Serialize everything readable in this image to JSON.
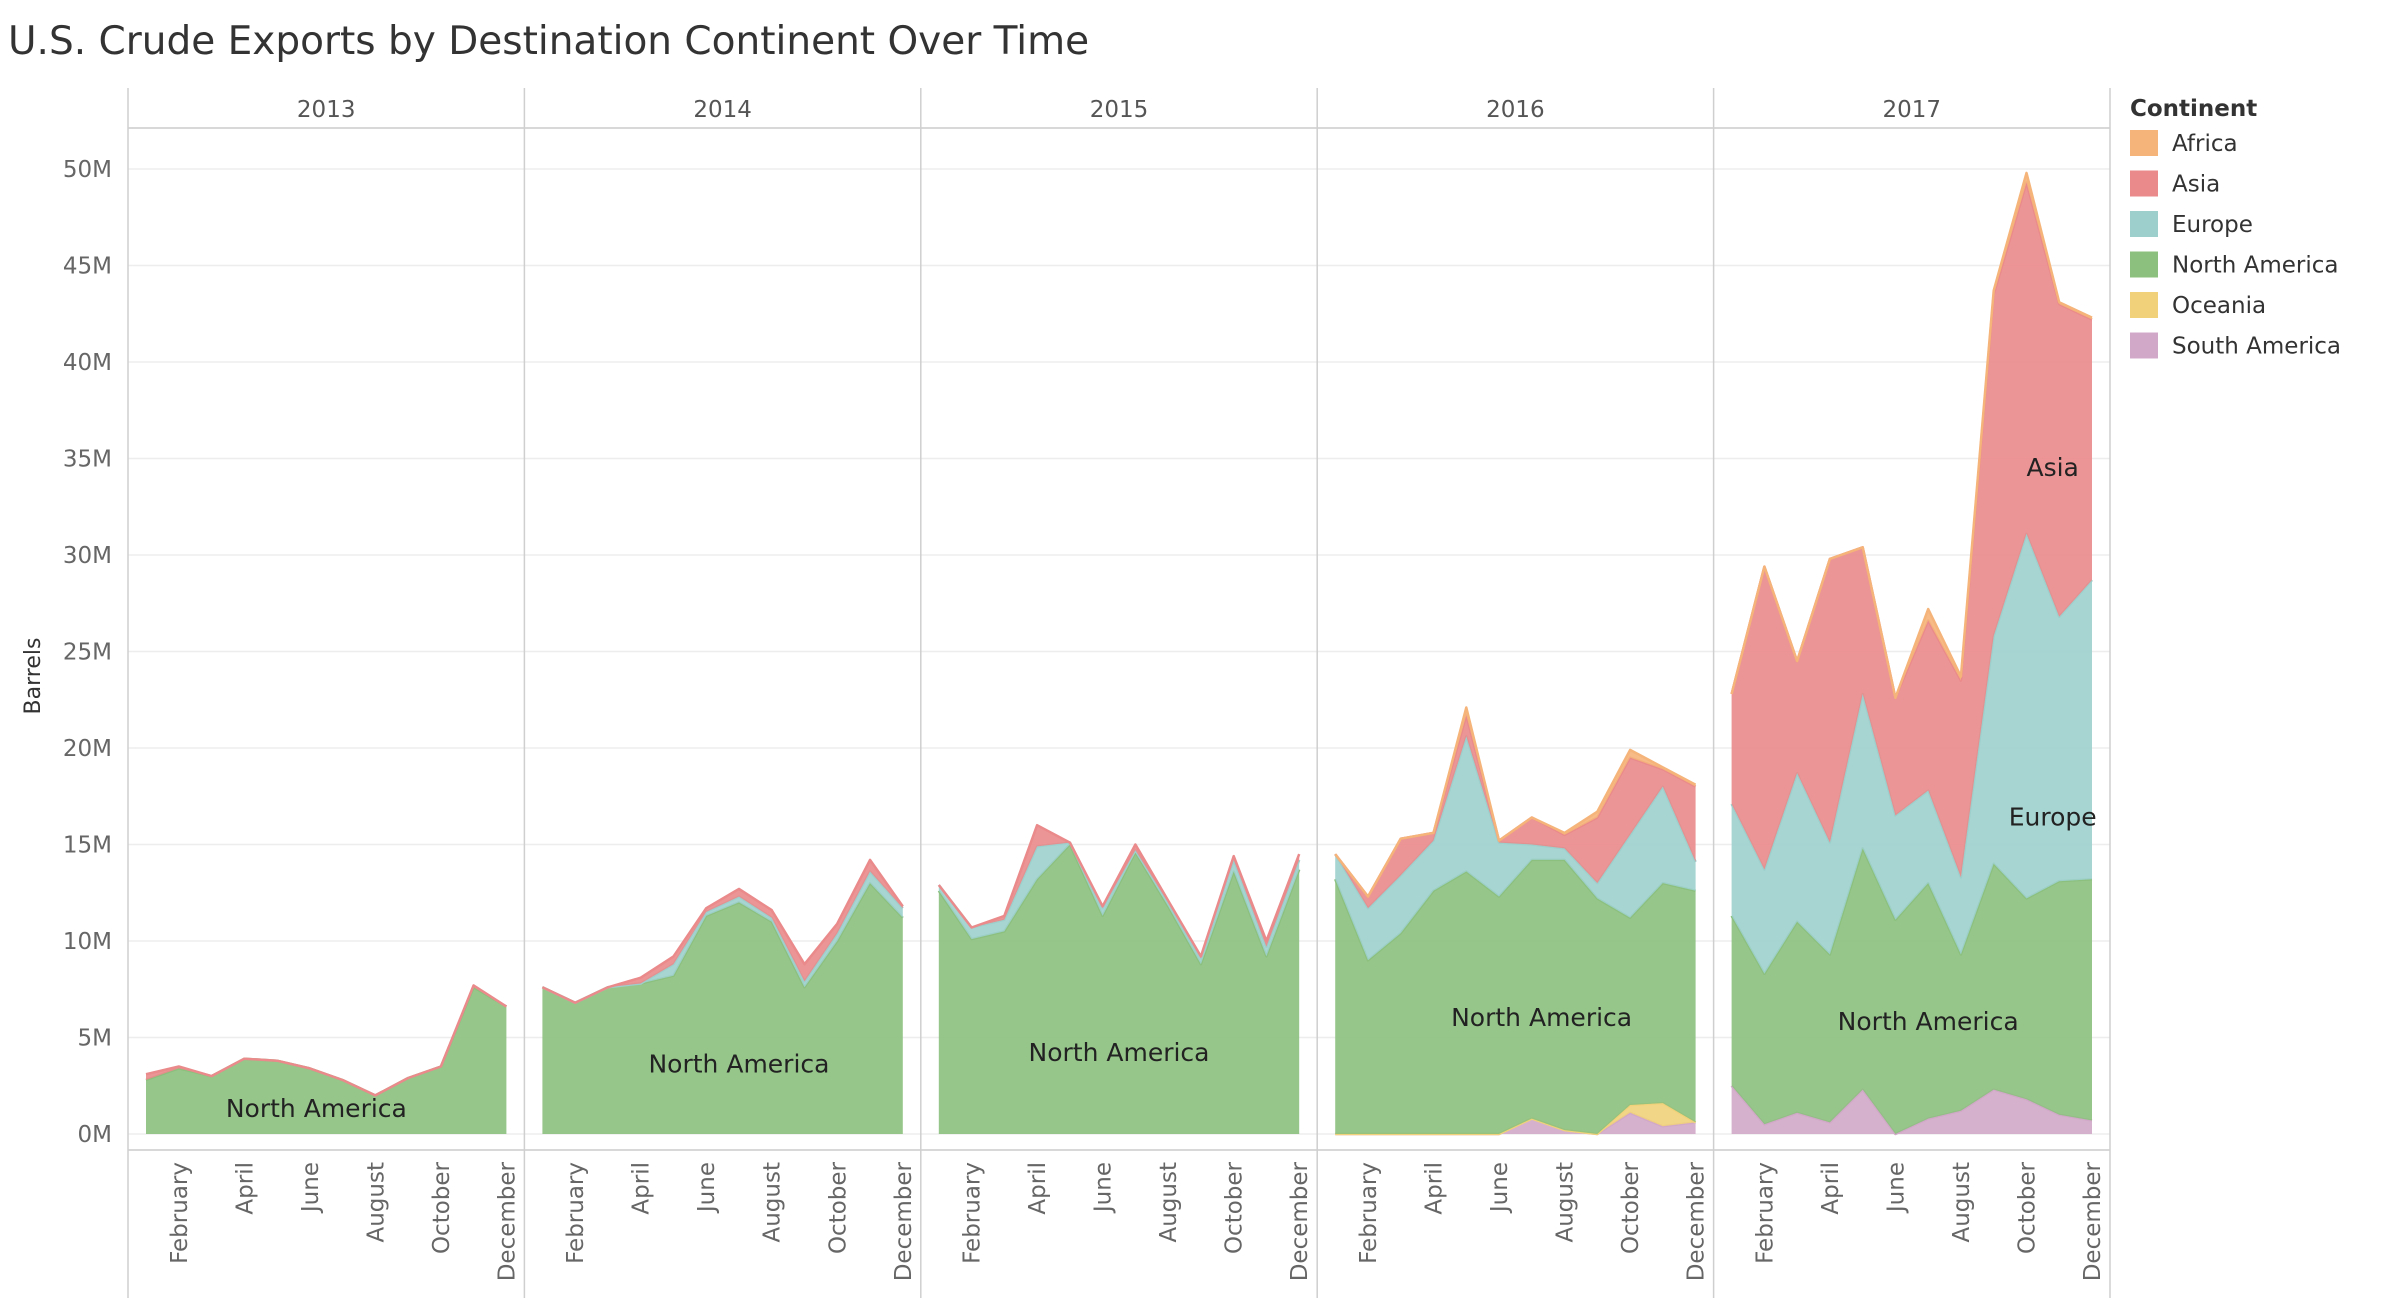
{
  "chart_data": {
    "type": "area",
    "title": "U.S. Crude Exports by Destination Continent Over Time",
    "ylabel": "Barrels",
    "xlabel": "",
    "ylim": [
      0,
      50000000
    ],
    "y_ticks": [
      "0M",
      "5M",
      "10M",
      "15M",
      "20M",
      "25M",
      "30M",
      "35M",
      "40M",
      "45M",
      "50M"
    ],
    "y_tick_values": [
      0,
      5,
      10,
      15,
      20,
      25,
      30,
      35,
      40,
      45,
      50
    ],
    "value_unit": "M barrels",
    "stacked": true,
    "grid": true,
    "legend": {
      "title": "Continent",
      "position": "right"
    },
    "month_tick_labels": [
      "February",
      "April",
      "June",
      "August",
      "October",
      "December"
    ],
    "month_tick_indices": [
      1,
      3,
      5,
      7,
      9,
      11
    ],
    "panels": [
      {
        "year": "2013",
        "series": [
          {
            "name": "South America",
            "color": "#d1a8c8",
            "values": [
              0,
              0,
              0,
              0,
              0,
              0,
              0,
              0,
              0,
              0,
              0,
              0
            ]
          },
          {
            "name": "Oceania",
            "color": "#f1d27a",
            "values": [
              0,
              0,
              0,
              0,
              0,
              0,
              0,
              0,
              0,
              0,
              0,
              0
            ]
          },
          {
            "name": "North America",
            "color": "#8cc07e",
            "values": [
              2.8,
              3.4,
              3.0,
              3.9,
              3.8,
              3.4,
              2.8,
              2.0,
              2.9,
              3.5,
              7.6,
              6.6
            ]
          },
          {
            "name": "Europe",
            "color": "#9dd0cd",
            "values": [
              0,
              0,
              0,
              0,
              0,
              0,
              0,
              0,
              0,
              0,
              0,
              0
            ]
          },
          {
            "name": "Asia",
            "color": "#ea8a8b",
            "values": [
              0.3,
              0.1,
              0,
              0,
              0,
              0,
              0,
              0,
              0,
              0,
              0.1,
              0
            ]
          },
          {
            "name": "Africa",
            "color": "#f5b47a",
            "values": [
              0,
              0,
              0,
              0,
              0,
              0,
              0,
              0,
              0,
              0,
              0,
              0
            ]
          }
        ],
        "annotations": [
          {
            "text": "North America",
            "month": 5.2,
            "value": 1.3
          }
        ]
      },
      {
        "year": "2014",
        "series": [
          {
            "name": "South America",
            "color": "#d1a8c8",
            "values": [
              0,
              0,
              0,
              0,
              0,
              0,
              0,
              0,
              0,
              0,
              0,
              0
            ]
          },
          {
            "name": "Oceania",
            "color": "#f1d27a",
            "values": [
              0,
              0,
              0,
              0,
              0,
              0,
              0,
              0,
              0,
              0,
              0,
              0
            ]
          },
          {
            "name": "North America",
            "color": "#8cc07e",
            "values": [
              7.6,
              6.8,
              7.6,
              7.8,
              8.2,
              11.3,
              12.0,
              11.0,
              7.6,
              10.0,
              13.0,
              11.2
            ]
          },
          {
            "name": "Europe",
            "color": "#9dd0cd",
            "values": [
              0,
              0,
              0,
              0,
              0.6,
              0.2,
              0.3,
              0.2,
              0.3,
              0.4,
              0.6,
              0.5
            ]
          },
          {
            "name": "Asia",
            "color": "#ea8a8b",
            "values": [
              0,
              0,
              0,
              0.3,
              0.4,
              0.2,
              0.4,
              0.4,
              0.9,
              0.5,
              0.6,
              0.1
            ]
          },
          {
            "name": "Africa",
            "color": "#f5b47a",
            "values": [
              0,
              0,
              0,
              0,
              0,
              0,
              0,
              0,
              0,
              0,
              0,
              0
            ]
          }
        ],
        "annotations": [
          {
            "text": "North America",
            "month": 6.0,
            "value": 3.6
          }
        ]
      },
      {
        "year": "2015",
        "series": [
          {
            "name": "South America",
            "color": "#d1a8c8",
            "values": [
              0,
              0,
              0,
              0,
              0,
              0,
              0,
              0,
              0,
              0,
              0,
              0
            ]
          },
          {
            "name": "Oceania",
            "color": "#f1d27a",
            "values": [
              0,
              0,
              0,
              0,
              0,
              0,
              0,
              0,
              0,
              0,
              0,
              0
            ]
          },
          {
            "name": "North America",
            "color": "#8cc07e",
            "values": [
              12.6,
              10.1,
              10.5,
              13.2,
              15.0,
              11.3,
              14.6,
              11.8,
              8.8,
              13.6,
              9.2,
              13.7
            ]
          },
          {
            "name": "Europe",
            "color": "#9dd0cd",
            "values": [
              0.3,
              0.6,
              0.6,
              1.7,
              0.1,
              0.4,
              0.1,
              0.2,
              0.3,
              0.6,
              0.5,
              0.5
            ]
          },
          {
            "name": "Asia",
            "color": "#ea8a8b",
            "values": [
              0,
              0,
              0.2,
              1.1,
              0,
              0.1,
              0.3,
              0.1,
              0.1,
              0.2,
              0.3,
              0.3
            ]
          },
          {
            "name": "Africa",
            "color": "#f5b47a",
            "values": [
              0,
              0,
              0,
              0,
              0,
              0,
              0,
              0,
              0,
              0,
              0,
              0
            ]
          }
        ],
        "annotations": [
          {
            "text": "North America",
            "month": 5.5,
            "value": 4.2
          }
        ]
      },
      {
        "year": "2016",
        "series": [
          {
            "name": "South America",
            "color": "#d1a8c8",
            "values": [
              0,
              0,
              0,
              0,
              0,
              0,
              0.8,
              0.2,
              0,
              1.1,
              0.4,
              0.6
            ]
          },
          {
            "name": "Oceania",
            "color": "#f1d27a",
            "values": [
              0,
              0,
              0,
              0,
              0,
              0,
              0,
              0,
              0,
              0.4,
              1.2,
              0
            ]
          },
          {
            "name": "North America",
            "color": "#8cc07e",
            "values": [
              13.2,
              9.0,
              10.4,
              12.6,
              13.6,
              12.3,
              13.4,
              14.0,
              12.2,
              9.7,
              11.4,
              12.0
            ]
          },
          {
            "name": "Europe",
            "color": "#9dd0cd",
            "values": [
              1.3,
              2.7,
              3.0,
              2.6,
              7.0,
              2.8,
              0.8,
              0.6,
              0.8,
              4.3,
              5.0,
              1.5
            ]
          },
          {
            "name": "Asia",
            "color": "#ea8a8b",
            "values": [
              0,
              0.6,
              1.9,
              0.4,
              1.1,
              0.1,
              1.4,
              0.7,
              3.4,
              4.0,
              0.9,
              3.9
            ]
          },
          {
            "name": "Africa",
            "color": "#f5b47a",
            "values": [
              0,
              0,
              0,
              0,
              0.4,
              0,
              0,
              0.1,
              0.3,
              0.4,
              0.1,
              0.1
            ]
          }
        ],
        "annotations": [
          {
            "text": "North America",
            "month": 6.3,
            "value": 6.0
          }
        ]
      },
      {
        "year": "2017",
        "series": [
          {
            "name": "South America",
            "color": "#d1a8c8",
            "values": [
              2.5,
              0.5,
              1.1,
              0.6,
              2.3,
              0,
              0.8,
              1.2,
              2.3,
              1.8,
              1.0,
              0.7
            ]
          },
          {
            "name": "Oceania",
            "color": "#f1d27a",
            "values": [
              0,
              0,
              0,
              0,
              0,
              0,
              0,
              0,
              0,
              0,
              0,
              0
            ]
          },
          {
            "name": "North America",
            "color": "#8cc07e",
            "values": [
              8.8,
              7.8,
              9.9,
              8.7,
              12.5,
              11.1,
              12.2,
              8.1,
              11.7,
              10.4,
              12.1,
              12.5
            ]
          },
          {
            "name": "Europe",
            "color": "#9dd0cd",
            "values": [
              5.8,
              5.4,
              7.7,
              5.8,
              8.0,
              5.4,
              4.8,
              4.0,
              11.8,
              18.9,
              13.7,
              15.5
            ]
          },
          {
            "name": "Asia",
            "color": "#ea8a8b",
            "values": [
              5.7,
              15.7,
              5.8,
              14.7,
              7.6,
              6.1,
              8.8,
              10.2,
              17.7,
              18.2,
              16.2,
              13.5
            ]
          },
          {
            "name": "Africa",
            "color": "#f5b47a",
            "values": [
              0,
              0,
              0,
              0,
              0,
              0,
              0.6,
              0.2,
              0.2,
              0.5,
              0.1,
              0.1
            ]
          }
        ],
        "annotations": [
          {
            "text": "Asia",
            "month": 9.8,
            "value": 34.5
          },
          {
            "text": "Europe",
            "month": 9.8,
            "value": 16.4
          },
          {
            "text": "North America",
            "month": 6.0,
            "value": 5.8
          }
        ]
      }
    ]
  }
}
